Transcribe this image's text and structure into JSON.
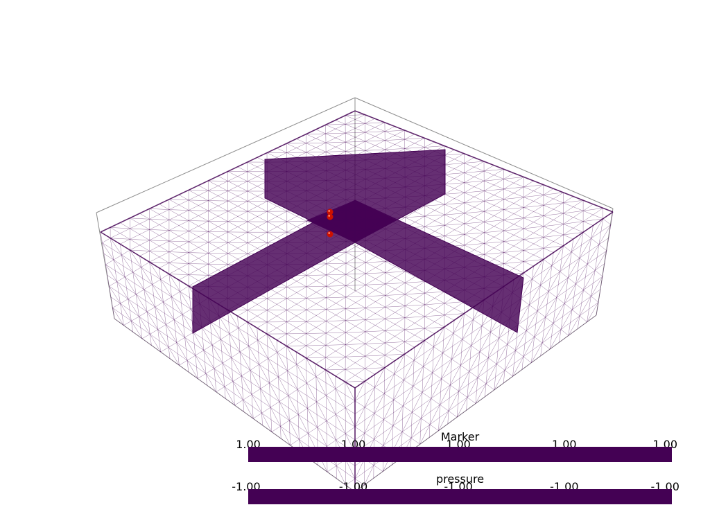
{
  "scene": {
    "mesh_color": "#440154",
    "plane_color": "#440154",
    "bbox_color": "#8c8c8c",
    "marker_point_color": "#cc1100"
  },
  "scalar_bars": [
    {
      "title": "Marker",
      "tick_labels": [
        "1.00",
        "1.00",
        "1.00",
        "1.00",
        "1.00"
      ],
      "color": "#440154"
    },
    {
      "title": "pressure",
      "tick_labels": [
        "-1.00",
        "-1.00",
        "-1.00",
        "-1.00",
        "-1.00"
      ],
      "color": "#440154"
    }
  ]
}
